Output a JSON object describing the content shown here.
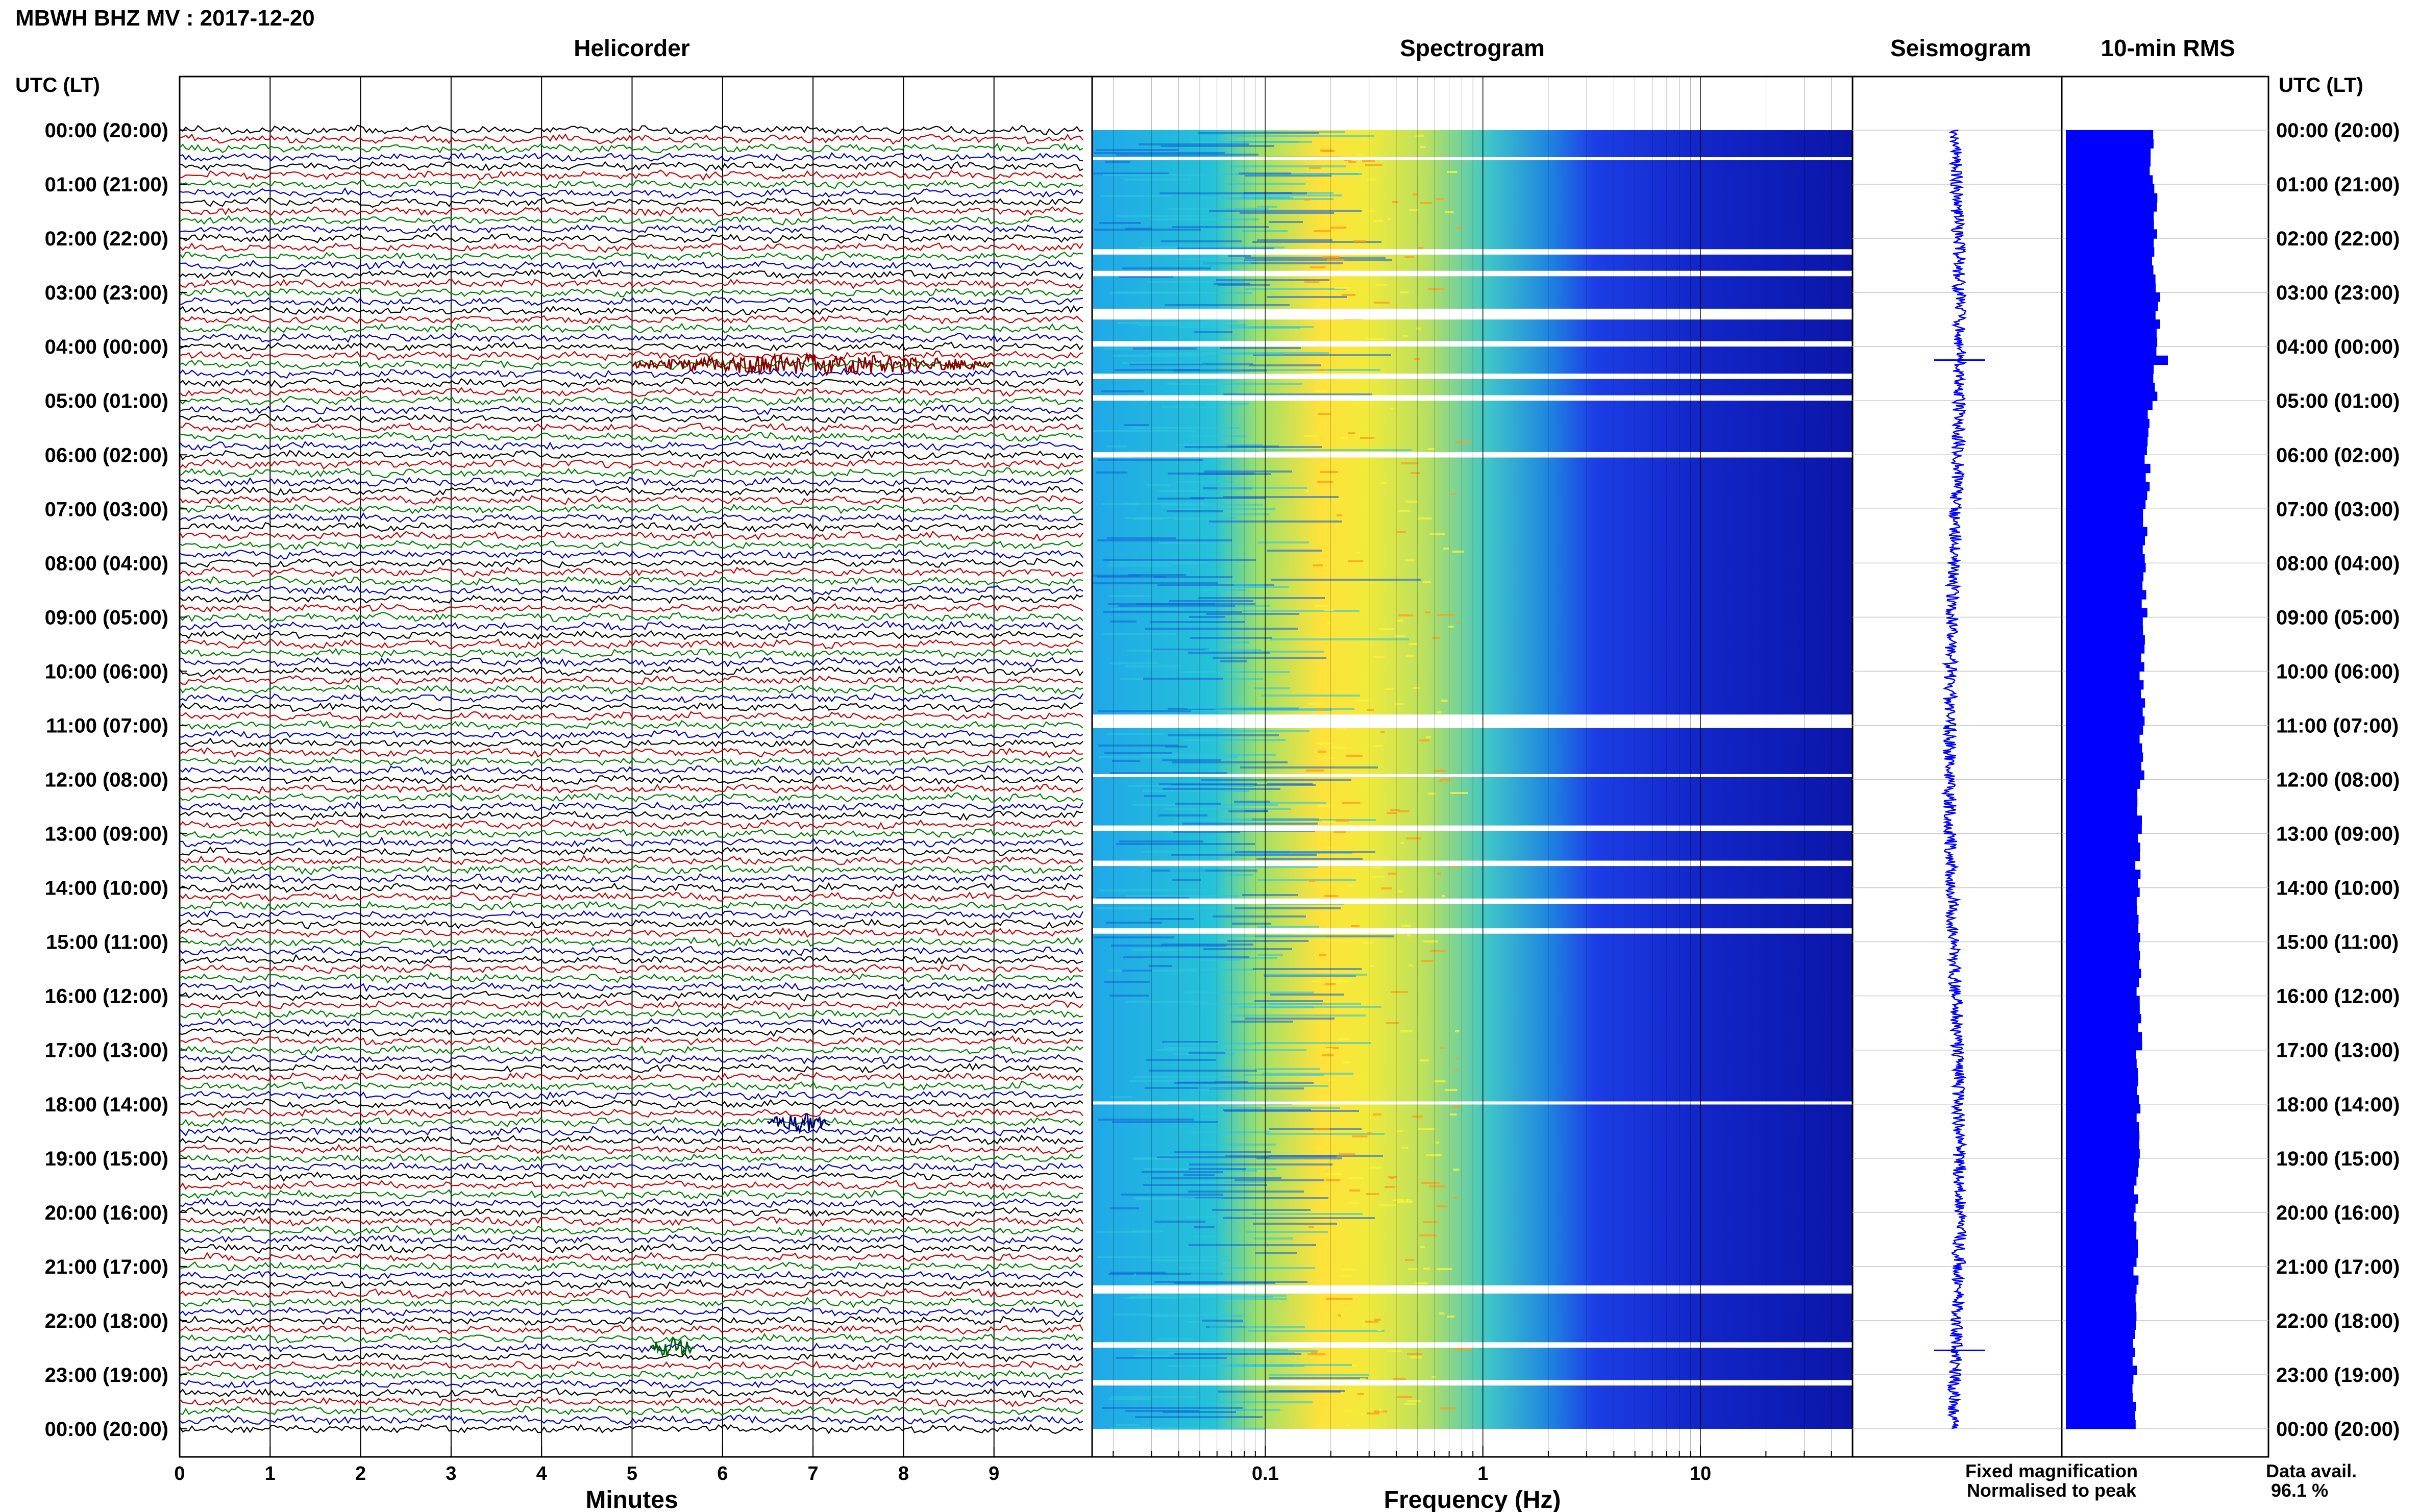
{
  "header": {
    "title": "MBWH BHZ MV : 2017-12-20",
    "utc_label_left": "UTC (LT)",
    "utc_label_right": "UTC (LT)"
  },
  "panels": {
    "helicorder": "Helicorder",
    "spectrogram": "Spectrogram",
    "seismogram": "Seismogram",
    "rms": "10-min RMS"
  },
  "legend": {
    "fixed": "Fixed magnification",
    "normalised": "Normalised to peak",
    "data_avail_label": "Data avail.",
    "data_avail_value": "96.1 %"
  },
  "colors": {
    "fixed": "#0000ff",
    "normalised": "#ff0000",
    "trace_cycle": [
      "#000000",
      "#cc0000",
      "#008000",
      "#0000cc"
    ],
    "rms_bar": "#0000ff"
  },
  "chart_data": [
    {
      "type": "line",
      "panel": "helicorder",
      "title": "Helicorder",
      "xlabel": "Minutes",
      "x_ticks": [
        0,
        1,
        2,
        3,
        4,
        5,
        6,
        7,
        8,
        9
      ],
      "xlim": [
        0,
        10
      ],
      "y_tick_labels": [
        "00:00 (20:00)",
        "01:00 (21:00)",
        "02:00 (22:00)",
        "03:00 (23:00)",
        "04:00 (00:00)",
        "05:00 (01:00)",
        "06:00 (02:00)",
        "07:00 (03:00)",
        "08:00 (04:00)",
        "09:00 (05:00)",
        "10:00 (06:00)",
        "11:00 (07:00)",
        "12:00 (08:00)",
        "13:00 (09:00)",
        "14:00 (10:00)",
        "15:00 (11:00)",
        "16:00 (12:00)",
        "17:00 (13:00)",
        "18:00 (14:00)",
        "19:00 (15:00)",
        "20:00 (16:00)",
        "21:00 (17:00)",
        "22:00 (18:00)",
        "23:00 (19:00)",
        "00:00 (20:00)"
      ],
      "rows": 144,
      "events": [
        {
          "time_utc": "04:20",
          "minute": 5.0,
          "duration_min": 4.0,
          "color": "#8b0000"
        },
        {
          "time_utc": "18:20",
          "minute": 6.5,
          "duration_min": 0.7,
          "color": "#000080"
        },
        {
          "time_utc": "22:30",
          "minute": 5.2,
          "duration_min": 0.5,
          "color": "#006400"
        }
      ]
    },
    {
      "type": "heatmap",
      "panel": "spectrogram",
      "title": "Spectrogram",
      "xlabel": "Frequency (Hz)",
      "x_scale": "log",
      "xlim": [
        0.016,
        50
      ],
      "x_tick_labels": [
        "0.1",
        "1",
        "10"
      ],
      "peak_band_hz": [
        0.15,
        0.6
      ],
      "gaps_utc_hours": [
        [
          0.5,
          0.55
        ],
        [
          2.2,
          2.3
        ],
        [
          2.6,
          2.7
        ],
        [
          3.3,
          3.5
        ],
        [
          3.9,
          4.0
        ],
        [
          4.5,
          4.6
        ],
        [
          4.9,
          5.0
        ],
        [
          5.95,
          6.05
        ],
        [
          10.8,
          11.05
        ],
        [
          11.9,
          11.95
        ],
        [
          12.85,
          12.95
        ],
        [
          13.5,
          13.6
        ],
        [
          14.2,
          14.3
        ],
        [
          14.75,
          14.85
        ],
        [
          17.95,
          18.0
        ],
        [
          21.35,
          21.5
        ],
        [
          22.4,
          22.5
        ],
        [
          23.1,
          23.2
        ]
      ]
    },
    {
      "type": "line",
      "panel": "seismogram",
      "title": "Seismogram",
      "spikes_utc_hours": [
        4.25,
        22.55
      ]
    },
    {
      "type": "bar",
      "panel": "rms",
      "title": "10-min RMS",
      "orientation": "horizontal",
      "bin_minutes": 10,
      "values_hourly": [
        0.85,
        0.88,
        0.87,
        0.9,
        0.88,
        0.82,
        0.8,
        0.78,
        0.77,
        0.76,
        0.75,
        0.74,
        0.72,
        0.71,
        0.7,
        0.72,
        0.73,
        0.7,
        0.71,
        0.69,
        0.68,
        0.69,
        0.67,
        0.66
      ],
      "peak_value": 1.0,
      "peak_time_utc": "04:10"
    }
  ]
}
